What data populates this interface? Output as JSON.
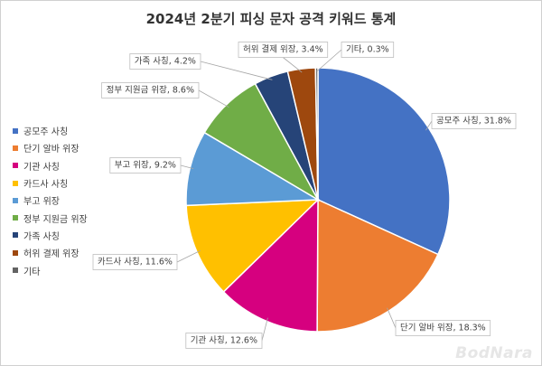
{
  "chart_data": {
    "type": "pie",
    "title": "2024년 2분기 피싱 문자 공격 키워드 통계",
    "categories": [
      "공모주 사칭",
      "단기 알바 위장",
      "기관 사칭",
      "카드사 사칭",
      "부고 위장",
      "정부 지원금 위장",
      "가족 사칭",
      "허위 결제 위장",
      "기타"
    ],
    "values": [
      31.8,
      18.3,
      12.6,
      11.6,
      9.2,
      8.6,
      4.2,
      3.4,
      0.3
    ],
    "data_labels": [
      "공모주 사칭, 31.8%",
      "단기 알바 위장, 18.3%",
      "기관 사칭, 12.6%",
      "카드사 사칭, 11.6%",
      "부고 위장, 9.2%",
      "정부 지원금 위장, 8.6%",
      "가족 사칭, 4.2%",
      "허위 결제 위장, 3.4%",
      "기타, 0.3%"
    ],
    "colors": [
      "#4472C4",
      "#ED7D31",
      "#D6007F",
      "#FFC000",
      "#5B9BD5",
      "#70AD47",
      "#264478",
      "#9E480E",
      "#636363"
    ],
    "legend_position": "left",
    "start_angle": "12 o'clock, clockwise"
  },
  "watermark": "BodNara"
}
